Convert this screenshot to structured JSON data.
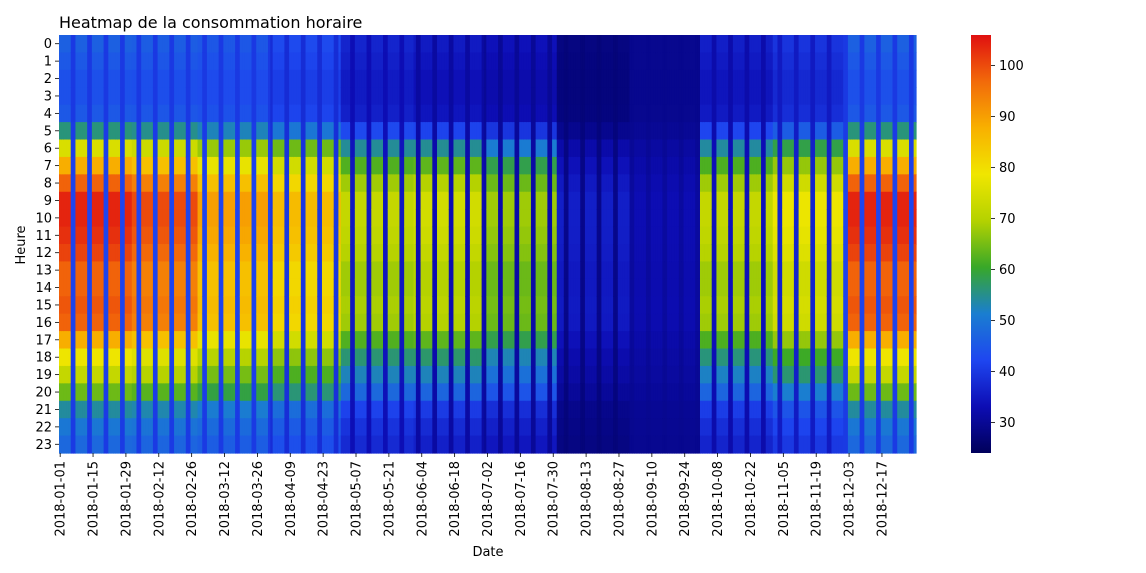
{
  "chart_data": {
    "type": "heatmap",
    "title": "Heatmap de la consommation horaire",
    "xlabel": "Date",
    "ylabel": "Heure",
    "x_start": "2018-01-01",
    "x_end": "2018-12-31",
    "x_tick_labels": [
      "2018-01-01",
      "2018-01-15",
      "2018-01-29",
      "2018-02-12",
      "2018-02-26",
      "2018-03-12",
      "2018-03-26",
      "2018-04-09",
      "2018-04-23",
      "2018-05-07",
      "2018-05-21",
      "2018-06-04",
      "2018-06-18",
      "2018-07-02",
      "2018-07-16",
      "2018-07-30",
      "2018-08-13",
      "2018-08-27",
      "2018-09-10",
      "2018-09-24",
      "2018-10-08",
      "2018-10-22",
      "2018-11-05",
      "2018-11-19",
      "2018-12-03",
      "2018-12-17"
    ],
    "y_categories": [
      "0",
      "1",
      "2",
      "3",
      "4",
      "5",
      "6",
      "7",
      "8",
      "9",
      "10",
      "11",
      "12",
      "13",
      "14",
      "15",
      "16",
      "17",
      "18",
      "19",
      "20",
      "21",
      "22",
      "23"
    ],
    "colorbar": {
      "ticks": [
        30,
        40,
        50,
        60,
        70,
        80,
        90,
        100
      ],
      "range": [
        24,
        106
      ]
    },
    "colormap": [
      "#00005a",
      "#0d0db4",
      "#1e46f0",
      "#1a7ed0",
      "#38a828",
      "#b4d200",
      "#f0e600",
      "#f8b000",
      "#f26a0a",
      "#e01010"
    ],
    "profile": {
      "weekday_hourly_weight": [
        0.1,
        0.08,
        0.06,
        0.06,
        0.08,
        0.25,
        0.55,
        0.75,
        0.9,
        1.0,
        1.0,
        0.98,
        0.95,
        0.9,
        0.9,
        0.92,
        0.9,
        0.75,
        0.6,
        0.5,
        0.38,
        0.22,
        0.16,
        0.12
      ],
      "monthly_weekday_peak": [
        104,
        100,
        90,
        86,
        72,
        74,
        68,
        36,
        33,
        72,
        78,
        104
      ],
      "monthly_base": [
        40,
        40,
        40,
        38,
        33,
        31,
        30,
        27,
        29,
        32,
        35,
        40
      ]
    }
  }
}
